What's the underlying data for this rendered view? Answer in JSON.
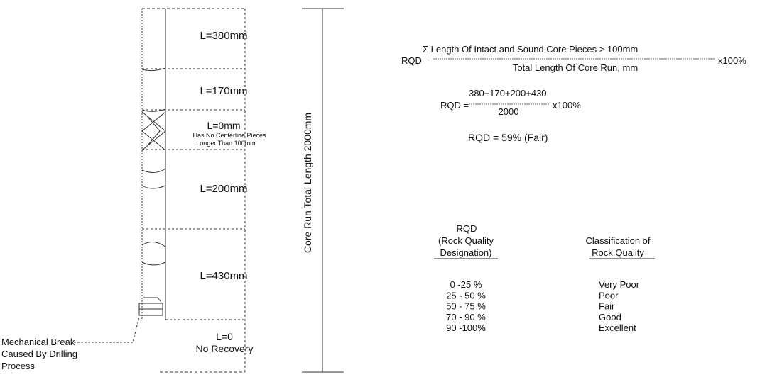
{
  "core_run": {
    "segments": [
      {
        "label": "L=380mm"
      },
      {
        "label": "L=170mm"
      },
      {
        "label": "L=0mm",
        "note_line1": "Has No Centerline Pieces",
        "note_line2": "Longer Than 100mm"
      },
      {
        "label": "L=200mm"
      },
      {
        "label": "L=430mm"
      },
      {
        "label": "L=0",
        "note_line1": "No Recovery"
      }
    ],
    "total_length_label": "Core Run Total Length 2000mm",
    "mechanical_break": [
      "Mechanical Break",
      "Caused By Drilling",
      "Process"
    ]
  },
  "formula": {
    "lhs": "RQD =",
    "numerator": "Σ Length Of  Intact and Sound Core Pieces > 100mm",
    "denominator": "Total Length Of Core Run, mm",
    "multiplier": "x100%",
    "calc_lhs": "RQD =",
    "calc_numerator": "380+170+200+430",
    "calc_denominator": "2000",
    "calc_multiplier": "x100%",
    "result": "RQD = 59% (Fair)"
  },
  "table": {
    "header_left": [
      "RQD",
      "(Rock Quality",
      "Designation)"
    ],
    "header_right": [
      "Classification of",
      "Rock Quality"
    ],
    "rows": [
      {
        "range": "0 -25 %",
        "class": "Very Poor"
      },
      {
        "range": "25 - 50 %",
        "class": "Poor"
      },
      {
        "range": "50 - 75 %",
        "class": "Fair"
      },
      {
        "range": "70 - 90 %",
        "class": "Good"
      },
      {
        "range": "90 -100%",
        "class": "Excellent"
      }
    ]
  }
}
